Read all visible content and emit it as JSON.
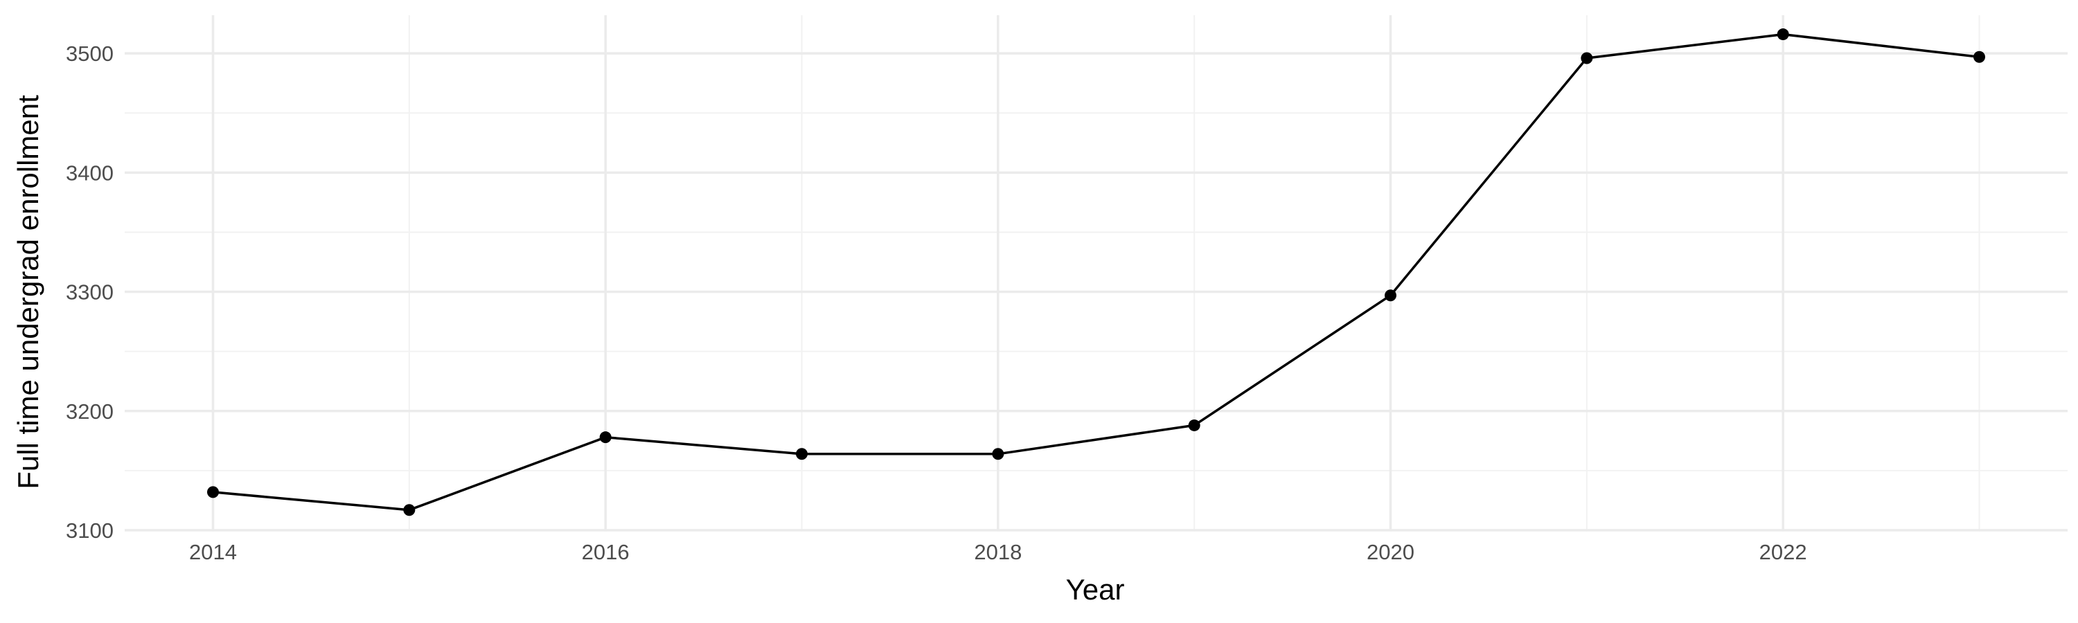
{
  "chart_data": {
    "type": "line",
    "title": "",
    "xlabel": "Year",
    "ylabel": "Full time undergrad enrollment",
    "x": [
      2014,
      2015,
      2016,
      2017,
      2018,
      2019,
      2020,
      2021,
      2022,
      2023
    ],
    "series": [
      {
        "name": "",
        "values": [
          3132,
          3117,
          3178,
          3164,
          3164,
          3188,
          3297,
          3496,
          3516,
          3497
        ]
      }
    ],
    "xlim": [
      2013.55,
      2023.45
    ],
    "ylim": [
      3100,
      3532
    ],
    "x_ticks": [
      2014,
      2016,
      2018,
      2020,
      2022
    ],
    "x_tick_labels": [
      "2014",
      "2016",
      "2018",
      "2020",
      "2022"
    ],
    "x_minor_ticks": [
      2015,
      2017,
      2019,
      2021,
      2023
    ],
    "y_ticks": [
      3100,
      3200,
      3300,
      3400,
      3500
    ],
    "y_tick_labels": [
      "3100",
      "3200",
      "3300",
      "3400",
      "3500"
    ],
    "y_minor_ticks": [
      3150,
      3250,
      3350,
      3450
    ],
    "grid": true,
    "legend": "none",
    "colors": {
      "line": "#000000",
      "points": "#000000",
      "grid_major": "#ebebeb",
      "grid_minor": "#f2f2f2",
      "tick_text": "#4d4d4d",
      "background": "#ffffff"
    }
  }
}
